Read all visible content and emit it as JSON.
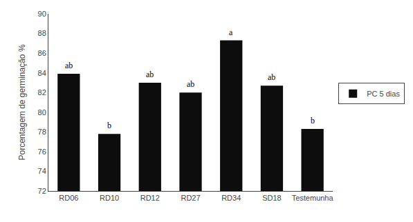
{
  "chart_data": {
    "type": "bar",
    "categories": [
      "RD06",
      "RD10",
      "RD12",
      "RD27",
      "RD34",
      "SD18",
      "Testemunha"
    ],
    "series": [
      {
        "name": "PC 5 dias",
        "color": "#0d0d0d",
        "values": [
          83.9,
          77.8,
          83.0,
          82.0,
          87.3,
          82.7,
          78.3
        ]
      }
    ],
    "annotations": [
      "ab",
      "b",
      "ab",
      "ab",
      "a",
      "ab",
      "b"
    ],
    "ylabel": "Porcentagem de germinação %",
    "ylim": [
      72,
      90
    ],
    "yticks": [
      72,
      74,
      76,
      78,
      80,
      82,
      84,
      86,
      88,
      90
    ],
    "grid": false,
    "legend": "right"
  }
}
